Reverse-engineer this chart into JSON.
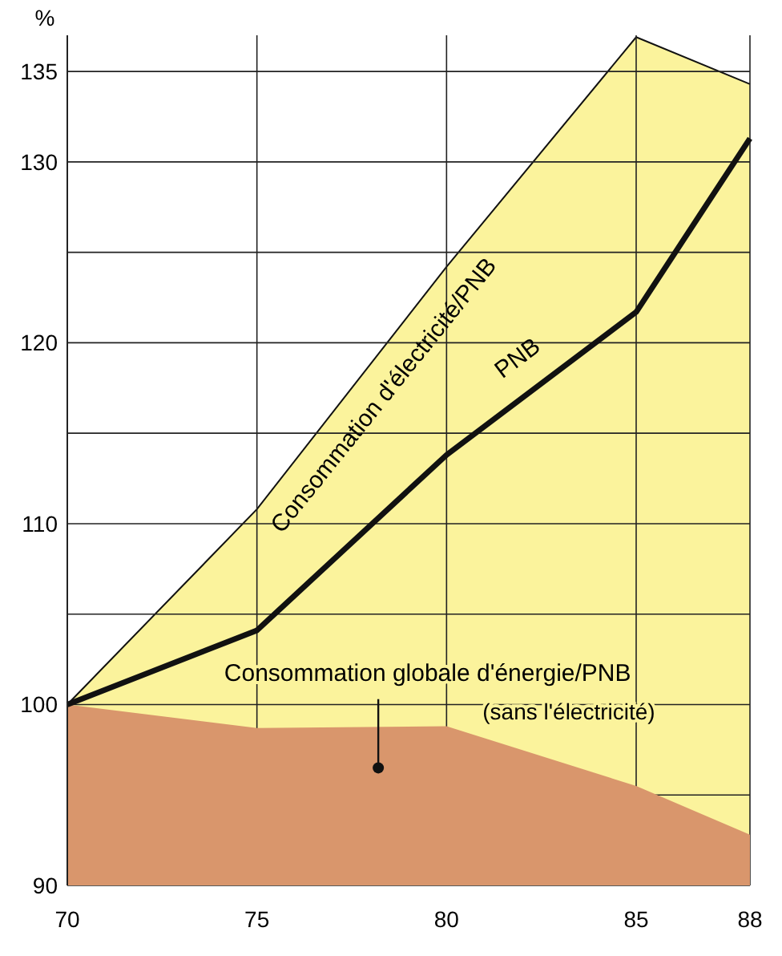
{
  "chart_data": {
    "type": "area",
    "ylabel": "%",
    "x": [
      70,
      75,
      80,
      85,
      88
    ],
    "xlim": [
      70,
      88
    ],
    "xticks": [
      70,
      75,
      80,
      85,
      88
    ],
    "ylim": [
      90,
      137
    ],
    "yticks": [
      90,
      {
        "value": 95,
        "label": null
      },
      100,
      {
        "value": 105,
        "label": null
      },
      110,
      {
        "value": 115,
        "label": null
      },
      120,
      {
        "value": 125,
        "label": null
      },
      130,
      135
    ],
    "grid": true,
    "series": [
      {
        "name": "Consommation d'électricité/PNB",
        "color": "#fbf39c",
        "values": [
          100,
          110.8,
          124.2,
          136.9,
          134.3
        ]
      },
      {
        "name": "Consommation globale d'énergie/PNB",
        "color": "#d9966c",
        "values": [
          100,
          98.7,
          98.8,
          95.5,
          92.8
        ]
      },
      {
        "name": "PNB",
        "type": "line",
        "color": "#111111",
        "values": [
          100,
          104.1,
          113.8,
          121.7,
          131.3
        ]
      }
    ],
    "annotations": [
      "(sans l'électricité)"
    ]
  }
}
